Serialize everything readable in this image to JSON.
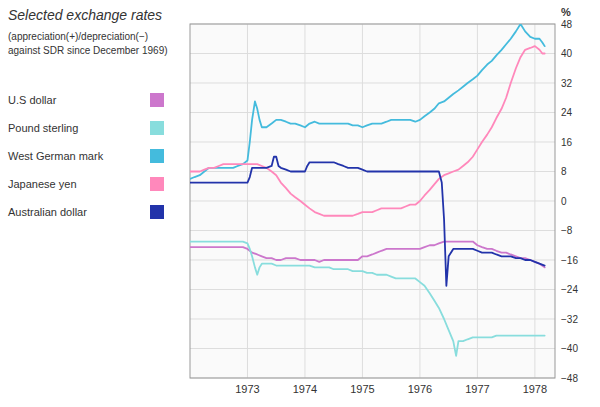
{
  "chart_data": {
    "type": "line",
    "title": "Selected exchange rates",
    "subtitle": [
      "(appreciation(+)/depreciation(−)",
      "against SDR since December 1969)"
    ],
    "y_label": "%",
    "grid": true,
    "legend": "left",
    "xlim": [
      1972.0,
      1978.35
    ],
    "xticks": [
      1973,
      1974,
      1975,
      1976,
      1977,
      1978
    ],
    "ylim": [
      -48,
      48
    ],
    "yticks": [
      {
        "value": -48,
        "label": "−48"
      },
      {
        "value": -40,
        "label": "−40"
      },
      {
        "value": -32,
        "label": "−32"
      },
      {
        "value": -24,
        "label": "−24"
      },
      {
        "value": -16,
        "label": "−16"
      },
      {
        "value": -8,
        "label": "−8"
      },
      0,
      8,
      16,
      24,
      32,
      40,
      48
    ],
    "series": [
      {
        "name": "U.S dollar",
        "color": "#cc77cc",
        "x": [
          1972.0,
          1972.08,
          1972.17,
          1972.25,
          1972.33,
          1972.42,
          1972.5,
          1972.58,
          1972.67,
          1972.75,
          1972.83,
          1972.92,
          1973.0,
          1973.08,
          1973.17,
          1973.25,
          1973.33,
          1973.42,
          1973.5,
          1973.58,
          1973.67,
          1973.75,
          1973.83,
          1973.92,
          1974.0,
          1974.08,
          1974.17,
          1974.25,
          1974.33,
          1974.42,
          1974.5,
          1974.58,
          1974.67,
          1974.75,
          1974.83,
          1974.92,
          1975.0,
          1975.08,
          1975.17,
          1975.25,
          1975.33,
          1975.42,
          1975.5,
          1975.58,
          1975.67,
          1975.75,
          1975.83,
          1975.92,
          1976.0,
          1976.08,
          1976.17,
          1976.25,
          1976.33,
          1976.42,
          1976.5,
          1976.58,
          1976.67,
          1976.75,
          1976.83,
          1976.92,
          1977.0,
          1977.08,
          1977.17,
          1977.25,
          1977.33,
          1977.42,
          1977.5,
          1977.58,
          1977.67,
          1977.75,
          1977.83,
          1977.92,
          1978.0,
          1978.08,
          1978.17
        ],
        "values": [
          -12.5,
          -12.5,
          -12.5,
          -12.5,
          -12.5,
          -12.5,
          -12.5,
          -12.5,
          -12.5,
          -12.5,
          -12.5,
          -12.5,
          -13.0,
          -14.0,
          -14.5,
          -15.0,
          -15.5,
          -15.5,
          -16.0,
          -16.0,
          -15.5,
          -15.5,
          -15.5,
          -16.0,
          -16.0,
          -16.0,
          -16.0,
          -16.5,
          -16.0,
          -16.0,
          -16.0,
          -16.0,
          -16.0,
          -16.0,
          -16.0,
          -16.0,
          -15.0,
          -15.0,
          -14.5,
          -14.0,
          -13.5,
          -13.0,
          -13.0,
          -13.0,
          -13.0,
          -13.0,
          -13.0,
          -13.0,
          -13.0,
          -12.5,
          -12.0,
          -12.0,
          -11.5,
          -11.0,
          -11.0,
          -11.0,
          -11.0,
          -11.0,
          -11.0,
          -11.0,
          -12.0,
          -12.5,
          -13.0,
          -13.0,
          -13.5,
          -14.0,
          -14.0,
          -14.5,
          -15.0,
          -15.5,
          -15.5,
          -16.0,
          -16.5,
          -17.0,
          -18.0
        ]
      },
      {
        "name": "Pound sterling",
        "color": "#88dddd",
        "x": [
          1972.0,
          1972.08,
          1972.17,
          1972.25,
          1972.33,
          1972.42,
          1972.5,
          1972.58,
          1972.67,
          1972.75,
          1972.83,
          1972.92,
          1973.0,
          1973.04,
          1973.08,
          1973.13,
          1973.17,
          1973.21,
          1973.25,
          1973.33,
          1973.42,
          1973.5,
          1973.58,
          1973.67,
          1973.75,
          1973.83,
          1973.92,
          1974.0,
          1974.08,
          1974.17,
          1974.25,
          1974.33,
          1974.42,
          1974.5,
          1974.58,
          1974.67,
          1974.75,
          1974.83,
          1974.92,
          1975.0,
          1975.08,
          1975.17,
          1975.25,
          1975.33,
          1975.42,
          1975.5,
          1975.58,
          1975.67,
          1975.75,
          1975.83,
          1975.92,
          1976.0,
          1976.08,
          1976.17,
          1976.25,
          1976.33,
          1976.42,
          1976.5,
          1976.58,
          1976.63,
          1976.67,
          1976.75,
          1976.83,
          1976.92,
          1977.0,
          1977.08,
          1977.17,
          1977.25,
          1977.33,
          1977.42,
          1977.5,
          1977.58,
          1977.67,
          1977.75,
          1977.83,
          1977.92,
          1978.0,
          1978.08,
          1978.17
        ],
        "values": [
          -11.0,
          -11.0,
          -11.0,
          -11.0,
          -11.0,
          -11.0,
          -11.0,
          -11.0,
          -11.0,
          -11.0,
          -11.0,
          -11.0,
          -11.5,
          -13.0,
          -15.0,
          -18.0,
          -20.0,
          -18.0,
          -17.0,
          -17.0,
          -17.0,
          -17.5,
          -17.5,
          -17.5,
          -17.5,
          -17.5,
          -17.5,
          -17.5,
          -17.5,
          -18.0,
          -18.0,
          -18.0,
          -18.0,
          -18.5,
          -18.5,
          -18.5,
          -18.5,
          -19.0,
          -19.0,
          -19.0,
          -19.5,
          -19.5,
          -20.0,
          -20.0,
          -20.0,
          -20.5,
          -21.0,
          -21.0,
          -21.0,
          -21.0,
          -21.0,
          -22.0,
          -23.0,
          -25.0,
          -27.0,
          -29.0,
          -32.0,
          -35.0,
          -38.0,
          -42.0,
          -38.0,
          -38.0,
          -37.5,
          -37.0,
          -37.0,
          -37.0,
          -37.0,
          -37.0,
          -36.5,
          -36.5,
          -36.5,
          -36.5,
          -36.5,
          -36.5,
          -36.5,
          -36.5,
          -36.5,
          -36.5,
          -36.5
        ]
      },
      {
        "name": "West German mark",
        "color": "#44bbdd",
        "x": [
          1972.0,
          1972.08,
          1972.17,
          1972.25,
          1972.33,
          1972.42,
          1972.5,
          1972.58,
          1972.67,
          1972.75,
          1972.83,
          1972.92,
          1973.0,
          1973.04,
          1973.08,
          1973.13,
          1973.17,
          1973.21,
          1973.25,
          1973.33,
          1973.42,
          1973.5,
          1973.58,
          1973.67,
          1973.75,
          1973.83,
          1973.92,
          1974.0,
          1974.08,
          1974.17,
          1974.25,
          1974.33,
          1974.42,
          1974.5,
          1974.58,
          1974.67,
          1974.75,
          1974.83,
          1974.92,
          1975.0,
          1975.08,
          1975.17,
          1975.25,
          1975.33,
          1975.42,
          1975.5,
          1975.58,
          1975.67,
          1975.75,
          1975.83,
          1975.92,
          1976.0,
          1976.08,
          1976.17,
          1976.25,
          1976.33,
          1976.42,
          1976.5,
          1976.58,
          1976.67,
          1976.75,
          1976.83,
          1976.92,
          1977.0,
          1977.08,
          1977.17,
          1977.25,
          1977.33,
          1977.42,
          1977.5,
          1977.58,
          1977.67,
          1977.75,
          1977.83,
          1977.92,
          1978.0,
          1978.08,
          1978.13,
          1978.17
        ],
        "values": [
          6.0,
          6.5,
          7.0,
          8.0,
          9.0,
          9.0,
          9.0,
          9.0,
          9.0,
          9.0,
          9.5,
          10.0,
          11.0,
          16.0,
          22.0,
          27.0,
          25.0,
          22.0,
          20.0,
          20.0,
          21.0,
          22.0,
          22.0,
          21.5,
          21.0,
          21.0,
          20.5,
          20.0,
          21.0,
          21.5,
          21.0,
          21.0,
          21.0,
          21.0,
          21.0,
          21.0,
          21.0,
          20.5,
          20.5,
          20.0,
          20.5,
          21.0,
          21.0,
          21.0,
          21.5,
          22.0,
          22.0,
          22.0,
          22.0,
          22.0,
          21.5,
          22.0,
          23.0,
          24.0,
          25.0,
          26.5,
          27.0,
          28.0,
          29.0,
          30.0,
          31.0,
          32.0,
          33.0,
          34.0,
          35.5,
          37.0,
          38.0,
          39.5,
          41.0,
          42.5,
          44.0,
          46.0,
          48.0,
          46.0,
          44.5,
          44.0,
          44.0,
          43.0,
          42.0
        ]
      },
      {
        "name": "Japanese yen",
        "color": "#ff88bb",
        "x": [
          1972.0,
          1972.08,
          1972.17,
          1972.25,
          1972.33,
          1972.42,
          1972.5,
          1972.58,
          1972.67,
          1972.75,
          1972.83,
          1972.92,
          1973.0,
          1973.08,
          1973.17,
          1973.25,
          1973.33,
          1973.42,
          1973.5,
          1973.58,
          1973.67,
          1973.75,
          1973.83,
          1973.92,
          1974.0,
          1974.08,
          1974.17,
          1974.25,
          1974.33,
          1974.42,
          1974.5,
          1974.58,
          1974.67,
          1974.75,
          1974.83,
          1974.92,
          1975.0,
          1975.08,
          1975.17,
          1975.25,
          1975.33,
          1975.42,
          1975.5,
          1975.58,
          1975.67,
          1975.75,
          1975.83,
          1975.92,
          1976.0,
          1976.08,
          1976.17,
          1976.25,
          1976.33,
          1976.42,
          1976.5,
          1976.58,
          1976.67,
          1976.75,
          1976.83,
          1976.92,
          1977.0,
          1977.08,
          1977.17,
          1977.25,
          1977.33,
          1977.42,
          1977.5,
          1977.58,
          1977.67,
          1977.75,
          1977.83,
          1977.92,
          1978.0,
          1978.08,
          1978.13,
          1978.17
        ],
        "values": [
          8.0,
          8.0,
          8.0,
          8.5,
          9.0,
          9.0,
          9.5,
          10.0,
          10.0,
          10.0,
          10.0,
          10.0,
          10.0,
          10.0,
          10.0,
          9.5,
          9.0,
          8.0,
          7.0,
          5.0,
          3.5,
          2.0,
          1.0,
          0.0,
          -1.0,
          -2.0,
          -3.0,
          -3.5,
          -4.0,
          -4.0,
          -4.0,
          -4.0,
          -4.0,
          -4.0,
          -4.0,
          -3.5,
          -3.0,
          -3.0,
          -3.0,
          -2.5,
          -2.0,
          -2.0,
          -2.0,
          -2.0,
          -2.0,
          -1.5,
          -1.0,
          -1.0,
          0.0,
          1.5,
          3.0,
          4.5,
          6.0,
          7.0,
          7.5,
          8.0,
          8.5,
          9.5,
          10.5,
          12.0,
          14.0,
          16.0,
          18.0,
          20.0,
          22.5,
          25.0,
          28.0,
          32.0,
          36.0,
          39.0,
          41.0,
          41.5,
          42.0,
          41.0,
          40.0,
          40.0
        ]
      },
      {
        "name": "Australian dollar",
        "color": "#2233aa",
        "x": [
          1972.0,
          1972.08,
          1972.17,
          1972.25,
          1972.33,
          1972.42,
          1972.5,
          1972.58,
          1972.67,
          1972.75,
          1972.83,
          1972.92,
          1973.0,
          1973.04,
          1973.08,
          1973.13,
          1973.17,
          1973.25,
          1973.33,
          1973.42,
          1973.46,
          1973.5,
          1973.54,
          1973.58,
          1973.67,
          1973.75,
          1973.83,
          1973.92,
          1974.0,
          1974.04,
          1974.08,
          1974.17,
          1974.25,
          1974.33,
          1974.42,
          1974.5,
          1974.58,
          1974.67,
          1974.75,
          1974.83,
          1974.92,
          1975.0,
          1975.08,
          1975.17,
          1975.25,
          1975.33,
          1975.42,
          1975.5,
          1975.58,
          1975.67,
          1975.75,
          1975.83,
          1975.92,
          1976.0,
          1976.08,
          1976.17,
          1976.25,
          1976.33,
          1976.38,
          1976.42,
          1976.46,
          1976.5,
          1976.58,
          1976.67,
          1976.75,
          1976.83,
          1976.92,
          1977.0,
          1977.08,
          1977.17,
          1977.25,
          1977.33,
          1977.42,
          1977.5,
          1977.58,
          1977.67,
          1977.75,
          1977.83,
          1977.92,
          1978.0,
          1978.08,
          1978.17
        ],
        "values": [
          5.0,
          5.0,
          5.0,
          5.0,
          5.0,
          5.0,
          5.0,
          5.0,
          5.0,
          5.0,
          5.0,
          5.0,
          5.0,
          6.5,
          9.0,
          9.0,
          9.0,
          9.0,
          9.0,
          9.5,
          12.0,
          12.0,
          9.5,
          9.0,
          8.5,
          8.0,
          8.0,
          8.0,
          8.0,
          9.5,
          10.5,
          10.5,
          10.5,
          10.5,
          10.5,
          10.5,
          10.0,
          9.5,
          9.0,
          9.0,
          9.0,
          8.5,
          8.0,
          8.0,
          8.0,
          8.0,
          8.0,
          8.0,
          8.0,
          8.0,
          8.0,
          8.0,
          8.0,
          8.0,
          8.0,
          8.0,
          8.0,
          8.0,
          5.0,
          -5.0,
          -23.0,
          -15.0,
          -13.0,
          -13.0,
          -13.0,
          -13.0,
          -13.0,
          -13.5,
          -14.0,
          -14.0,
          -14.0,
          -14.5,
          -15.0,
          -15.0,
          -15.0,
          -15.5,
          -15.5,
          -16.0,
          -16.0,
          -16.5,
          -17.0,
          -17.5
        ]
      }
    ]
  }
}
